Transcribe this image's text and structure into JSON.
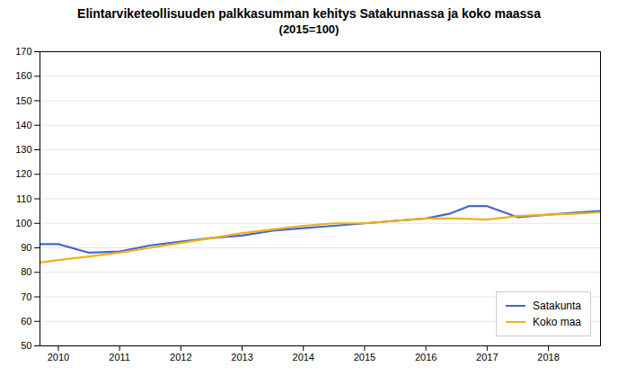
{
  "chart_data": {
    "type": "line",
    "title": "Elintarviketeollisuuden palkkasumman kehitys Satakunnassa ja koko maassa",
    "subtitle": "(2015=100)",
    "series": [
      {
        "name": "Satakunta",
        "x": [
          2009.7,
          2010.0,
          2010.5,
          2011.0,
          2011.5,
          2012.0,
          2012.5,
          2013.0,
          2013.5,
          2014.0,
          2014.5,
          2015.0,
          2015.5,
          2016.0,
          2016.4,
          2016.7,
          2017.0,
          2017.5,
          2018.0,
          2018.5,
          2018.85
        ],
        "values": [
          91.5,
          91.5,
          88.0,
          88.5,
          91.0,
          92.5,
          94.0,
          95.0,
          97.0,
          98.0,
          99.0,
          100.0,
          101.0,
          102.0,
          104.0,
          107.0,
          107.0,
          102.5,
          103.5,
          104.5,
          105.0
        ]
      },
      {
        "name": "Koko maa",
        "x": [
          2009.7,
          2010.0,
          2010.5,
          2011.0,
          2011.5,
          2012.0,
          2012.5,
          2013.0,
          2013.5,
          2014.0,
          2014.5,
          2015.0,
          2015.5,
          2016.0,
          2016.5,
          2017.0,
          2017.5,
          2018.0,
          2018.5,
          2018.85
        ],
        "values": [
          84.0,
          85.0,
          86.5,
          88.0,
          90.0,
          92.0,
          94.0,
          96.0,
          97.5,
          99.0,
          100.0,
          100.0,
          101.0,
          102.0,
          102.0,
          101.5,
          103.0,
          103.5,
          104.0,
          104.5
        ]
      }
    ],
    "xlim": [
      2009.7,
      2018.85
    ],
    "xticks": [
      2010,
      2011,
      2012,
      2013,
      2014,
      2015,
      2016,
      2017,
      2018
    ],
    "ylim": [
      50,
      170
    ],
    "yticks": [
      50,
      60,
      70,
      80,
      90,
      100,
      110,
      120,
      130,
      140,
      150,
      160,
      170
    ],
    "grid": true,
    "legend": "lower right"
  }
}
